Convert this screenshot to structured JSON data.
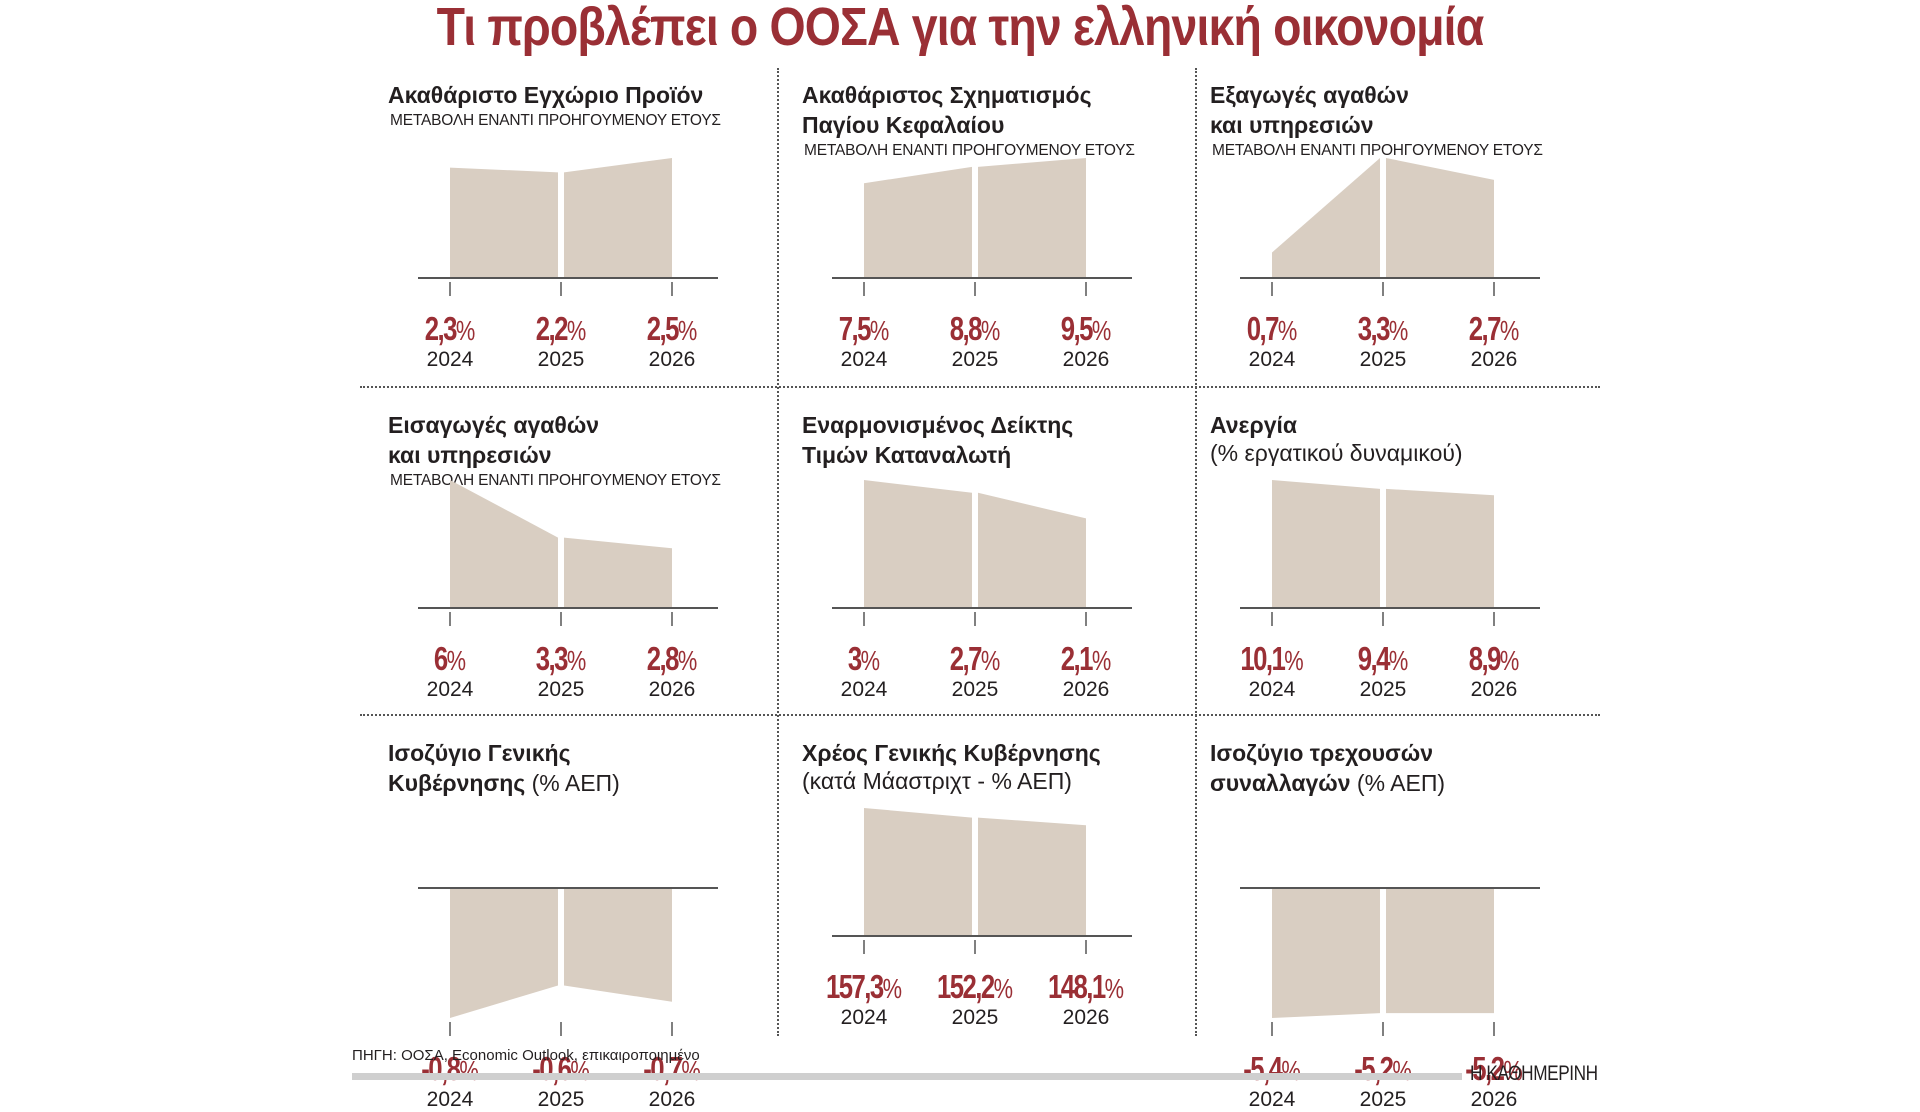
{
  "header": {
    "title": "Τι προβλέπει ο ΟΟΣΑ για την ελληνική οικονομία"
  },
  "colors": {
    "accent": "#9a2f35",
    "area_fill": "#d9cec2",
    "axis": "#555555",
    "text": "#231f20"
  },
  "chart_data": [
    {
      "type": "area",
      "title": "Ακαθάριστο Εγχώριο Προϊόν",
      "title_line2": "",
      "title_suffix": "",
      "subtitle": "ΜΕΤΑΒΟΛΗ ΕΝΑΝΤΙ ΠΡΟΗΓΟΥΜΕΝΟΥ ΕΤΟΥΣ",
      "categories": [
        "2024",
        "2025",
        "2026"
      ],
      "values": [
        2.3,
        2.2,
        2.5
      ],
      "labels": [
        "2,3",
        "2,2",
        "2,5"
      ],
      "unit": "%",
      "ylim": [
        0,
        2.5
      ]
    },
    {
      "type": "area",
      "title": "Ακαθάριστος Σχηματισμός",
      "title_line2": "Παγίου Κεφαλαίου",
      "title_suffix": "",
      "subtitle": "ΜΕΤΑΒΟΛΗ ΕΝΑΝΤΙ ΠΡΟΗΓΟΥΜΕΝΟΥ ΕΤΟΥΣ",
      "categories": [
        "2024",
        "2025",
        "2026"
      ],
      "values": [
        7.5,
        8.8,
        9.5
      ],
      "labels": [
        "7,5",
        "8,8",
        "9,5"
      ],
      "unit": "%",
      "ylim": [
        0,
        9.5
      ]
    },
    {
      "type": "area",
      "title": "Εξαγωγές αγαθών",
      "title_line2": "και υπηρεσιών",
      "title_suffix": "",
      "subtitle": "ΜΕΤΑΒΟΛΗ ΕΝΑΝΤΙ ΠΡΟΗΓΟΥΜΕΝΟΥ ΕΤΟΥΣ",
      "categories": [
        "2024",
        "2025",
        "2026"
      ],
      "values": [
        0.7,
        3.3,
        2.7
      ],
      "labels": [
        "0,7",
        "3,3",
        "2,7"
      ],
      "unit": "%",
      "ylim": [
        0,
        3.3
      ]
    },
    {
      "type": "area",
      "title": "Εισαγωγές αγαθών",
      "title_line2": "και υπηρεσιών",
      "title_suffix": "",
      "subtitle": "ΜΕΤΑΒΟΛΗ ΕΝΑΝΤΙ ΠΡΟΗΓΟΥΜΕΝΟΥ ΕΤΟΥΣ",
      "categories": [
        "2024",
        "2025",
        "2026"
      ],
      "values": [
        6,
        3.3,
        2.8
      ],
      "labels": [
        "6",
        "3,3",
        "2,8"
      ],
      "unit": "%",
      "ylim": [
        0,
        6
      ]
    },
    {
      "type": "area",
      "title": "Εναρμονισμένος Δείκτης",
      "title_line2": "Τιμών Καταναλωτή",
      "title_suffix": "",
      "subtitle": "",
      "categories": [
        "2024",
        "2025",
        "2026"
      ],
      "values": [
        3,
        2.7,
        2.1
      ],
      "labels": [
        "3",
        "2,7",
        "2,1"
      ],
      "unit": "%",
      "ylim": [
        0,
        3
      ]
    },
    {
      "type": "area",
      "title": "Ανεργία",
      "title_line2": "",
      "title_suffix": "",
      "subtitle": "(% εργατικού δυναμικού)",
      "categories": [
        "2024",
        "2025",
        "2026"
      ],
      "values": [
        10.1,
        9.4,
        8.9
      ],
      "labels": [
        "10,1",
        "9,4",
        "8,9"
      ],
      "unit": "%",
      "ylim": [
        0,
        10.1
      ]
    },
    {
      "type": "area",
      "title": "Ισοζύγιο Γενικής",
      "title_line2": "Κυβέρνησης",
      "title_suffix": "(% ΑΕΠ)",
      "subtitle": "",
      "categories": [
        "2024",
        "2025",
        "2026"
      ],
      "values": [
        -0.8,
        -0.6,
        -0.7
      ],
      "labels": [
        "-0,8",
        "-0,6",
        "-0,7"
      ],
      "unit": "%",
      "ylim": [
        -0.8,
        0
      ]
    },
    {
      "type": "area",
      "title": "Χρέος Γενικής Κυβέρνησης",
      "title_line2": "",
      "title_suffix": "",
      "subtitle": "(κατά Μάαστριχτ - % ΑΕΠ)",
      "categories": [
        "2024",
        "2025",
        "2026"
      ],
      "values": [
        157.3,
        152.2,
        148.1
      ],
      "labels": [
        "157,3",
        "152,2",
        "148,1"
      ],
      "unit": "%",
      "ylim": [
        120,
        157.3
      ]
    },
    {
      "type": "area",
      "title": "Ισοζύγιο τρεχουσών",
      "title_line2": "συναλλαγών",
      "title_suffix": "(% ΑΕΠ)",
      "subtitle": "",
      "categories": [
        "2024",
        "2025",
        "2026"
      ],
      "values": [
        -5.4,
        -5.2,
        -5.2
      ],
      "labels": [
        "-5,4",
        "-5,2",
        "-5,2"
      ],
      "unit": "%",
      "ylim": [
        -5.4,
        -4.5
      ]
    }
  ],
  "footer": {
    "source": "ΠΗΓΗ: ΟΟΣΑ, Economic Outlook, επικαιροποιημένο",
    "brand": "Η ΚΑΘΗΜΕΡΙΝΗ"
  }
}
